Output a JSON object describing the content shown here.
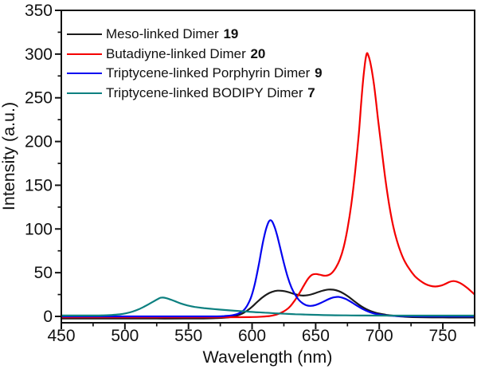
{
  "chart_data": {
    "type": "line",
    "title": "",
    "xlabel": "Wavelength (nm)",
    "ylabel": "Intensity (a.u.)",
    "x_range": [
      450,
      775
    ],
    "y_range": [
      0,
      350
    ],
    "x_ticks": [
      450,
      500,
      550,
      600,
      650,
      700,
      750
    ],
    "x_minor_ticks": [
      475,
      525,
      575,
      625,
      675,
      725,
      775
    ],
    "y_ticks": [
      0,
      50,
      100,
      150,
      200,
      250,
      300,
      350
    ],
    "y_minor_ticks": [
      25,
      75,
      125,
      175,
      225,
      275,
      325
    ],
    "grid": false,
    "legend_position": "top-left",
    "frame_color": "#111111",
    "series": [
      {
        "name": "Meso-linked Dimer",
        "bold_number": "19",
        "color": "#1c1c1c",
        "peaks_note": "broad double hump ~616 nm (29) and ~660 nm (31)",
        "points": [
          [
            450,
            -2.5
          ],
          [
            475,
            -2.5
          ],
          [
            500,
            -2.5
          ],
          [
            525,
            -2.5
          ],
          [
            548,
            -2.5
          ],
          [
            562,
            -2.4
          ],
          [
            572,
            -2
          ],
          [
            578,
            -1.5
          ],
          [
            583,
            -0.8
          ],
          [
            588,
            0.8
          ],
          [
            592,
            3
          ],
          [
            596,
            6.5
          ],
          [
            600,
            11
          ],
          [
            604,
            16.5
          ],
          [
            608,
            21.5
          ],
          [
            612,
            25.5
          ],
          [
            616,
            28.2
          ],
          [
            620,
            29.4
          ],
          [
            624,
            29.2
          ],
          [
            628,
            28
          ],
          [
            632,
            26.2
          ],
          [
            636,
            24.6
          ],
          [
            640,
            23.8
          ],
          [
            644,
            24.3
          ],
          [
            648,
            25.8
          ],
          [
            652,
            27.8
          ],
          [
            656,
            29.6
          ],
          [
            660,
            30.7
          ],
          [
            664,
            30.5
          ],
          [
            668,
            29
          ],
          [
            672,
            26.2
          ],
          [
            676,
            22.3
          ],
          [
            680,
            17.8
          ],
          [
            684,
            13.4
          ],
          [
            688,
            9.7
          ],
          [
            692,
            6.8
          ],
          [
            696,
            4.7
          ],
          [
            700,
            3.2
          ],
          [
            705,
            1.9
          ],
          [
            711,
            0.8
          ],
          [
            718,
            -0.2
          ],
          [
            726,
            -0.8
          ],
          [
            736,
            -1.1
          ],
          [
            750,
            -1.2
          ],
          [
            762,
            -1.3
          ],
          [
            775,
            -1.3
          ]
        ]
      },
      {
        "name": "Butadiyne-linked Dimer",
        "bold_number": "20",
        "color": "#f40000",
        "peaks_note": "shoulder ~647 nm (49), main peak ~690 nm (301), side bump ~757 nm (40)",
        "points": [
          [
            450,
            -1
          ],
          [
            480,
            -1
          ],
          [
            510,
            -1
          ],
          [
            540,
            -1
          ],
          [
            570,
            -1
          ],
          [
            590,
            -0.9
          ],
          [
            600,
            -0.7
          ],
          [
            608,
            -0.3
          ],
          [
            614,
            0.5
          ],
          [
            619,
            2
          ],
          [
            624,
            5
          ],
          [
            629,
            10
          ],
          [
            633,
            17
          ],
          [
            637,
            26
          ],
          [
            641,
            36
          ],
          [
            644,
            43
          ],
          [
            647,
            47.5
          ],
          [
            650,
            48.5
          ],
          [
            653,
            47.8
          ],
          [
            657,
            46.6
          ],
          [
            660,
            47.2
          ],
          [
            663,
            50
          ],
          [
            666,
            56
          ],
          [
            669,
            65
          ],
          [
            672,
            79
          ],
          [
            675,
            100
          ],
          [
            678,
            128
          ],
          [
            681,
            165
          ],
          [
            684,
            210
          ],
          [
            686,
            248
          ],
          [
            688,
            280
          ],
          [
            690,
            300
          ],
          [
            691.5,
            298
          ],
          [
            693,
            290
          ],
          [
            695,
            274
          ],
          [
            697,
            252
          ],
          [
            699,
            226
          ],
          [
            702,
            190
          ],
          [
            705,
            155
          ],
          [
            708,
            126
          ],
          [
            711,
            103
          ],
          [
            714,
            86
          ],
          [
            717,
            73
          ],
          [
            720,
            63
          ],
          [
            724,
            53.5
          ],
          [
            728,
            46
          ],
          [
            732,
            41
          ],
          [
            736,
            37.3
          ],
          [
            740,
            35
          ],
          [
            744,
            34.2
          ],
          [
            748,
            35
          ],
          [
            752,
            37.2
          ],
          [
            755,
            39.3
          ],
          [
            758,
            40.4
          ],
          [
            761,
            39.7
          ],
          [
            765,
            37
          ],
          [
            769,
            32.8
          ],
          [
            772,
            29
          ],
          [
            775,
            25
          ]
        ]
      },
      {
        "name": "Triptycene-linked Porphyrin Dimer",
        "bold_number": "9",
        "color": "#0404f0",
        "peaks_note": "sharp peak ~613 nm (110), secondary bump ~666 nm (22)",
        "points": [
          [
            450,
            0
          ],
          [
            480,
            0
          ],
          [
            510,
            0
          ],
          [
            540,
            0
          ],
          [
            570,
            0
          ],
          [
            578,
            0.4
          ],
          [
            584,
            1.2
          ],
          [
            589,
            3
          ],
          [
            593,
            6.5
          ],
          [
            596,
            12
          ],
          [
            599,
            21
          ],
          [
            602,
            36
          ],
          [
            605,
            57
          ],
          [
            607,
            73
          ],
          [
            609,
            88
          ],
          [
            611,
            100
          ],
          [
            613,
            108
          ],
          [
            614.5,
            110
          ],
          [
            616,
            108
          ],
          [
            618,
            101
          ],
          [
            620,
            91
          ],
          [
            622,
            79
          ],
          [
            625,
            61
          ],
          [
            628,
            45
          ],
          [
            631,
            33
          ],
          [
            634,
            24.5
          ],
          [
            637,
            18.5
          ],
          [
            640,
            14.8
          ],
          [
            643,
            12.6
          ],
          [
            646,
            12
          ],
          [
            650,
            13
          ],
          [
            654,
            15.4
          ],
          [
            658,
            18.2
          ],
          [
            662,
            20.8
          ],
          [
            665,
            22
          ],
          [
            668,
            22.3
          ],
          [
            671,
            21.3
          ],
          [
            675,
            19
          ],
          [
            679,
            15.5
          ],
          [
            683,
            11.8
          ],
          [
            687,
            8.4
          ],
          [
            691,
            5.7
          ],
          [
            695,
            3.7
          ],
          [
            699,
            2.4
          ],
          [
            704,
            1.3
          ],
          [
            711,
            0.6
          ],
          [
            720,
            0.2
          ],
          [
            735,
            0
          ],
          [
            755,
            0
          ],
          [
            775,
            0
          ]
        ]
      },
      {
        "name": "Triptycene-linked BODIPY Dimer",
        "bold_number": "7",
        "color": "#0d8080",
        "peaks_note": "peak ~527 nm (21.5) with long tail",
        "points": [
          [
            450,
            1
          ],
          [
            462,
            1
          ],
          [
            474,
            1
          ],
          [
            483,
            1.2
          ],
          [
            490,
            1.6
          ],
          [
            496,
            2.4
          ],
          [
            501,
            3.6
          ],
          [
            506,
            5.5
          ],
          [
            511,
            8.2
          ],
          [
            515,
            11
          ],
          [
            519,
            14.2
          ],
          [
            523,
            17.5
          ],
          [
            526,
            20
          ],
          [
            528,
            21.3
          ],
          [
            530,
            21.5
          ],
          [
            533,
            20.7
          ],
          [
            536,
            19.2
          ],
          [
            540,
            17
          ],
          [
            544,
            14.8
          ],
          [
            549,
            12.6
          ],
          [
            555,
            10.8
          ],
          [
            562,
            9.5
          ],
          [
            570,
            8.4
          ],
          [
            578,
            7.4
          ],
          [
            586,
            6.5
          ],
          [
            594,
            5.7
          ],
          [
            602,
            4.9
          ],
          [
            610,
            4.3
          ],
          [
            618,
            3.6
          ],
          [
            626,
            3
          ],
          [
            634,
            2.5
          ],
          [
            642,
            2.1
          ],
          [
            652,
            1.7
          ],
          [
            662,
            1.4
          ],
          [
            674,
            1.15
          ],
          [
            688,
            1
          ],
          [
            705,
            0.95
          ],
          [
            725,
            0.9
          ],
          [
            750,
            0.9
          ],
          [
            775,
            0.9
          ]
        ]
      }
    ]
  }
}
